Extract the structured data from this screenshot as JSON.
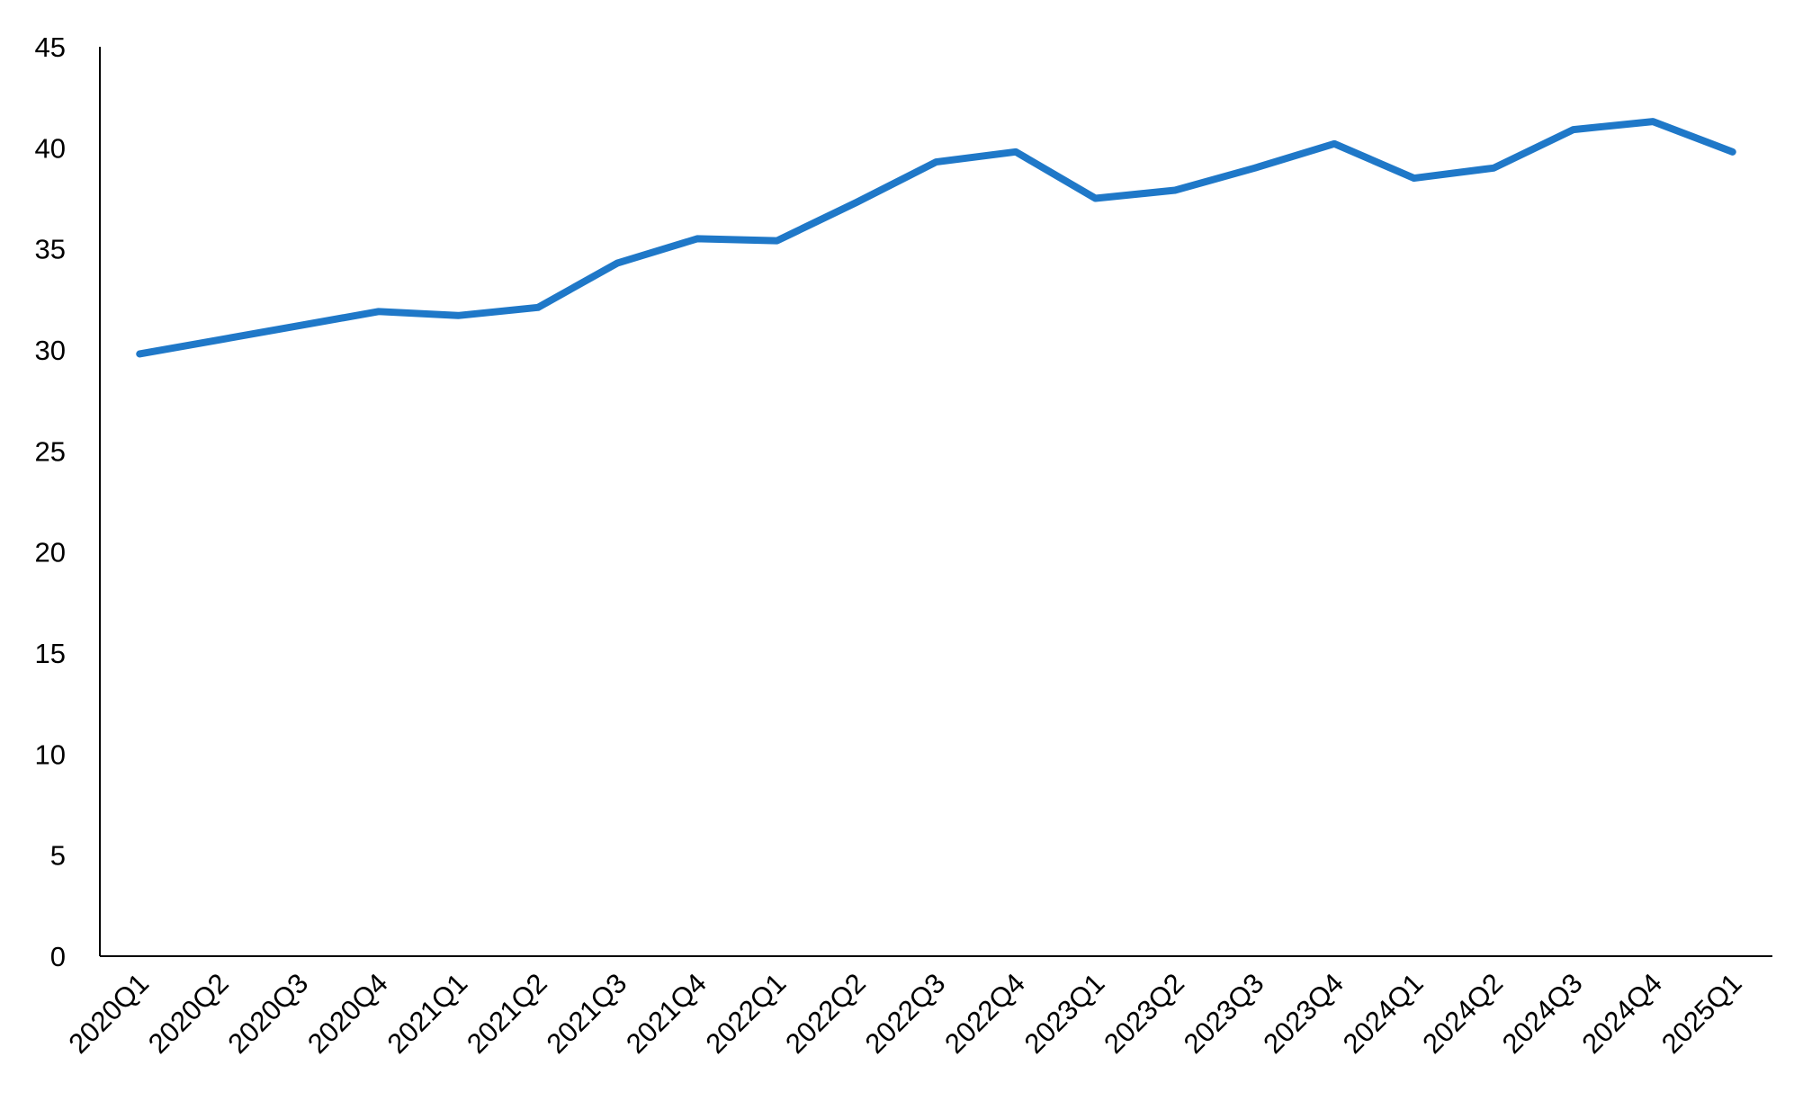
{
  "chart_data": {
    "type": "line",
    "categories": [
      "2020Q1",
      "2020Q2",
      "2020Q3",
      "2020Q4",
      "2021Q1",
      "2021Q2",
      "2021Q3",
      "2021Q4",
      "2022Q1",
      "2022Q2",
      "2022Q3",
      "2022Q4",
      "2023Q1",
      "2023Q2",
      "2023Q3",
      "2023Q4",
      "2024Q1",
      "2024Q2",
      "2024Q3",
      "2024Q4",
      "2025Q1"
    ],
    "values": [
      29.8,
      30.5,
      31.2,
      31.9,
      31.7,
      32.1,
      34.3,
      35.5,
      35.4,
      37.3,
      39.3,
      39.8,
      37.5,
      37.9,
      39.0,
      40.2,
      38.5,
      39.0,
      40.9,
      41.3,
      39.8
    ],
    "color": "#1f78c8",
    "ylim": [
      0,
      45
    ],
    "yticks": [
      0,
      5,
      10,
      15,
      20,
      25,
      30,
      35,
      40,
      45
    ],
    "grid": false
  }
}
